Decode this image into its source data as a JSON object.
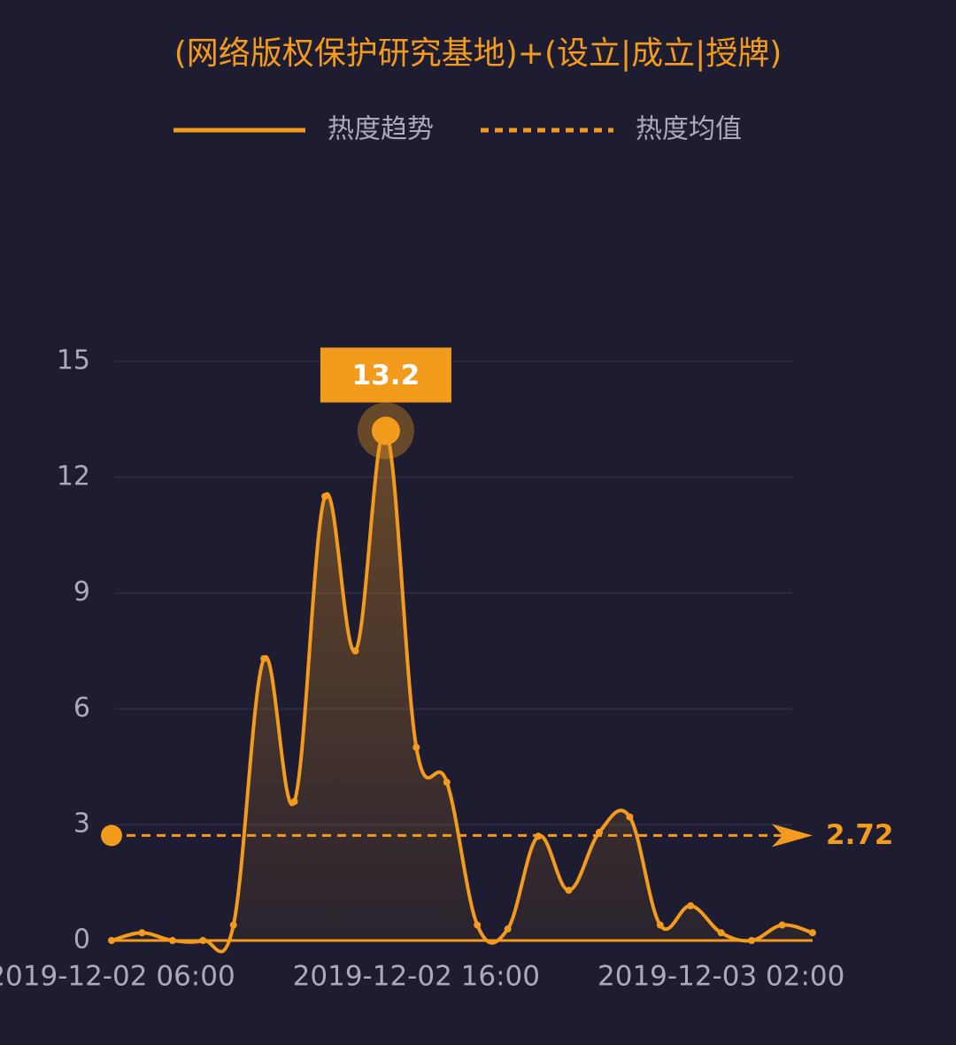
{
  "chart_data": {
    "type": "line",
    "title": "(网络版权保护研究基地)+(设立|成立|授牌)",
    "categories": [
      "2019-12-02 06:00",
      null,
      null,
      null,
      null,
      null,
      null,
      null,
      null,
      null,
      "2019-12-02 16:00",
      null,
      null,
      null,
      null,
      null,
      null,
      null,
      null,
      null,
      "2019-12-03 02:00",
      null,
      null,
      null
    ],
    "series": [
      {
        "name": "热度趋势",
        "color": "#f29b1d",
        "values": [
          0,
          0.2,
          0,
          0,
          0.4,
          7.3,
          3.6,
          11.5,
          7.5,
          13.2,
          5.0,
          4.1,
          0.4,
          0.3,
          2.7,
          1.3,
          2.8,
          3.2,
          0.4,
          0.9,
          0.2,
          0,
          0.4,
          0.2
        ]
      }
    ],
    "mean": {
      "name": "热度均值",
      "value": 2.72
    },
    "ylim": [
      0,
      15
    ],
    "yticks": [
      0,
      3,
      6,
      9,
      12,
      15
    ],
    "grid": true
  }
}
